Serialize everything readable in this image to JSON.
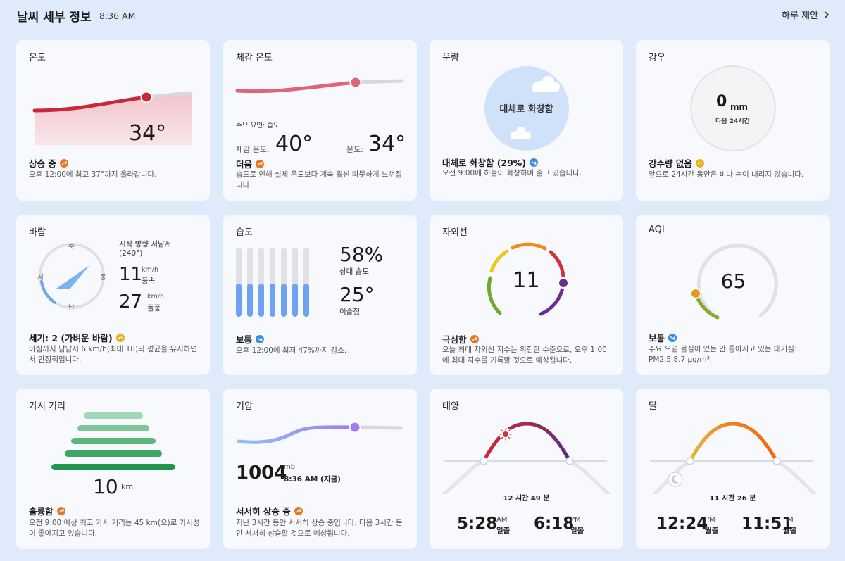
{
  "header": {
    "title": "날씨 세부 정보",
    "time": "8:36 AM",
    "suggest": "하루 제안"
  },
  "temperature": {
    "title": "온도",
    "value": "34°",
    "status": "상승 중",
    "desc": "오후 12:00에 최고 37°까지 올라갑니다."
  },
  "feels_like": {
    "title": "체감 온도",
    "factor": "주요 요인: 습도",
    "feels_label": "체감 온도:",
    "feels_value": "40°",
    "temp_label": "온도:",
    "temp_value": "34°",
    "status": "더움",
    "desc": "습도로 인해 실제 온도보다 계속 훨씬 따뜻하게 느껴집니다."
  },
  "cloud": {
    "title": "운량",
    "center": "대체로 화창함",
    "status": "대체로 화창함 (29%)",
    "desc": "오전 9:00에 하늘이 화창하며 줄고 있습니다."
  },
  "rain": {
    "title": "강우",
    "value": "0",
    "unit": "mm",
    "sub": "다음 24시간",
    "status": "강수량 없음",
    "desc": "앞으로 24시간 동안은 비나 눈이 내리지 않습니다."
  },
  "wind": {
    "title": "바람",
    "n": "북",
    "s": "남",
    "w": "서",
    "e": "동",
    "direction": "시작 방향 서남서",
    "degrees": "(240°)",
    "speed": "11",
    "speed_unit": "km/h",
    "speed_label": "풍속",
    "gust": "27",
    "gust_unit": "km/h",
    "gust_label": "돌풍",
    "status": "세기: 2 (가벼운 바람)",
    "desc": "아침까지 남남서 6 km/h(최대 18)의 평균을 유지하면서 안정적입니다."
  },
  "humidity": {
    "title": "습도",
    "value": "58%",
    "value_label": "상대 습도",
    "dew": "25°",
    "dew_label": "이슬점",
    "status": "보통",
    "desc": "오후 12:00에 최저 47%까지 감소."
  },
  "uv": {
    "title": "자외선",
    "value": "11",
    "status": "극심함",
    "desc": "오늘 최대 자외선 지수는 위험한 수준으로, 오후 1:00에 최대 지수를 기록할 것으로 예상됩니다."
  },
  "aqi": {
    "title": "AQI",
    "value": "65",
    "status": "보통",
    "desc": "주요 오염 물질이 있는 안 좋아지고 있는 대기질: PM2.5 8.7 μg/m³."
  },
  "visibility": {
    "title": "가시 거리",
    "value": "10",
    "unit": "km",
    "status": "훌륭함",
    "desc": "오전 9:00 예상 최고 가시 거리는 45 km(으)로 가시성이 좋아지고 있습니다."
  },
  "pressure": {
    "title": "기압",
    "value": "1004",
    "unit": "mb",
    "time": "8:36 AM (지금)",
    "status": "서서히 상승 중",
    "desc": "지난 3시간 동안 서서히 상승 중입니다. 다음 3시간 동안 서서히 상승할 것으로 예상됩니다."
  },
  "sun": {
    "title": "태양",
    "duration": "12 시간 49 분",
    "rise": "5:28",
    "rise_ampm": "AM",
    "rise_label": "일출",
    "set": "6:18",
    "set_ampm": "PM",
    "set_label": "일몰"
  },
  "moon": {
    "title": "달",
    "duration": "11 시간 26 분",
    "rise": "12:24",
    "rise_ampm": "PM",
    "rise_label": "월출",
    "set": "11:51",
    "set_ampm": "PM",
    "set_label": "월몰"
  }
}
